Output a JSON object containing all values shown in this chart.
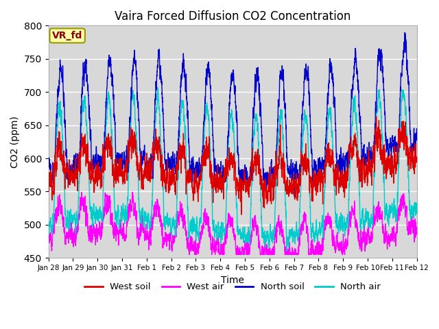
{
  "title": "Vaira Forced Diffusion CO2 Concentration",
  "xlabel": "Time",
  "ylabel": "CO2 (ppm)",
  "ylim": [
    450,
    800
  ],
  "yticks": [
    450,
    500,
    550,
    600,
    650,
    700,
    750,
    800
  ],
  "background_color": "#ffffff",
  "plot_bg_color": "#d8d8d8",
  "legend_entries": [
    "West soil",
    "West air",
    "North soil",
    "North air"
  ],
  "line_colors": [
    "#dd0000",
    "#ff00ff",
    "#0000cc",
    "#00cccc"
  ],
  "annotation_text": "VR_fd",
  "annotation_color": "#8b0000",
  "annotation_bg": "#ffffaa",
  "annotation_border": "#999900",
  "xtick_labels": [
    "Jan 28",
    "Jan 29",
    "Jan 30",
    "Jan 31",
    "Feb 1",
    "Feb 2",
    "Feb 3",
    "Feb 4",
    "Feb 5",
    "Feb 6",
    "Feb 7",
    "Feb 8",
    "Feb 9",
    "Feb 10",
    "Feb 11",
    "Feb 12"
  ],
  "num_points": 4320,
  "seed": 12345
}
